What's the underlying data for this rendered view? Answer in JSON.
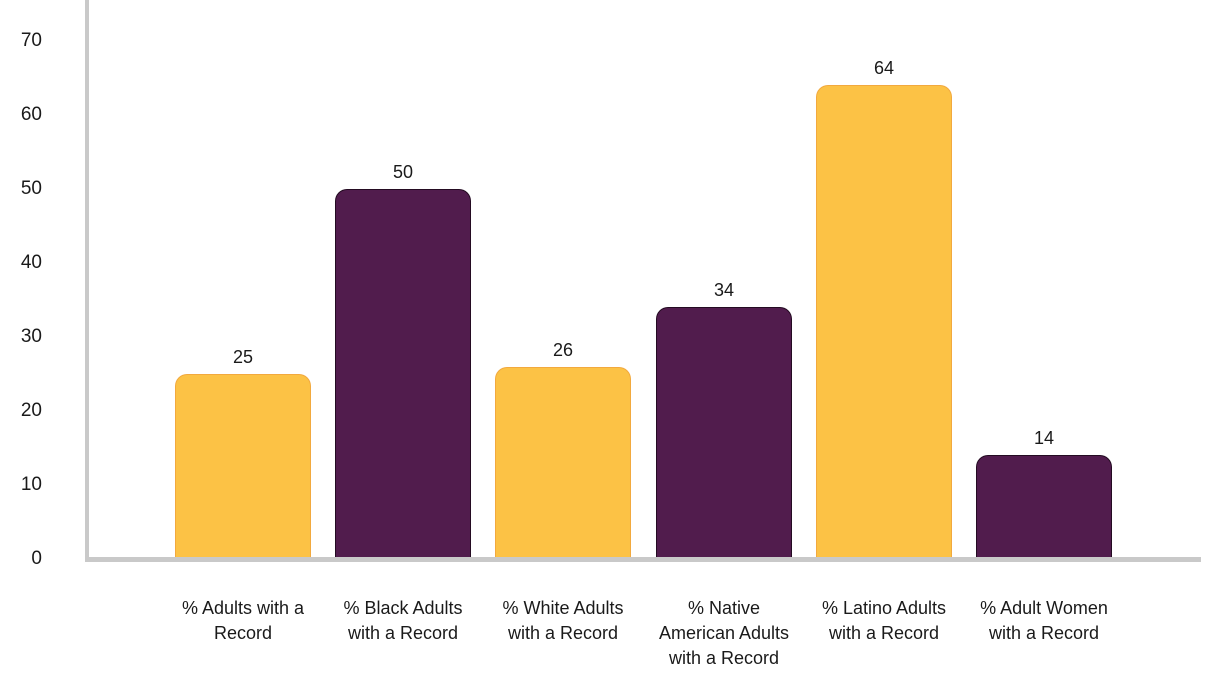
{
  "chart_data": {
    "type": "bar",
    "categories": [
      "% Adults with a Record",
      "% Black Adults with a Record",
      "% White Adults with a Record",
      "% Native American Adults with a Record",
      "% Latino Adults with a Record",
      "% Adult Women with a Record"
    ],
    "category_label_lines": [
      [
        "% Adults with a",
        "Record"
      ],
      [
        "% Black Adults",
        "with a Record"
      ],
      [
        "% White Adults",
        "with a Record"
      ],
      [
        "% Native",
        "American Adults",
        "with a Record"
      ],
      [
        "% Latino Adults",
        "with a Record"
      ],
      [
        "% Adult Women",
        "with a Record"
      ]
    ],
    "values": [
      25,
      50,
      26,
      34,
      64,
      14
    ],
    "value_labels": [
      "25",
      "50",
      "26",
      "34",
      "64",
      "14"
    ],
    "bar_color_keys": [
      "gold",
      "plum",
      "gold",
      "plum",
      "gold",
      "plum"
    ],
    "palette": {
      "gold": "#FCC245",
      "gold_border": "#F2A93E",
      "plum": "#511C4D",
      "plum_border": "#240B22",
      "axis": "#C9C9C9",
      "label_text": "#1A1A1A"
    },
    "yticks": [
      0,
      10,
      20,
      30,
      40,
      50,
      60,
      70
    ],
    "ylim": [
      0,
      75.5
    ],
    "grid": false,
    "legend": null,
    "value_labels_shown": true
  }
}
